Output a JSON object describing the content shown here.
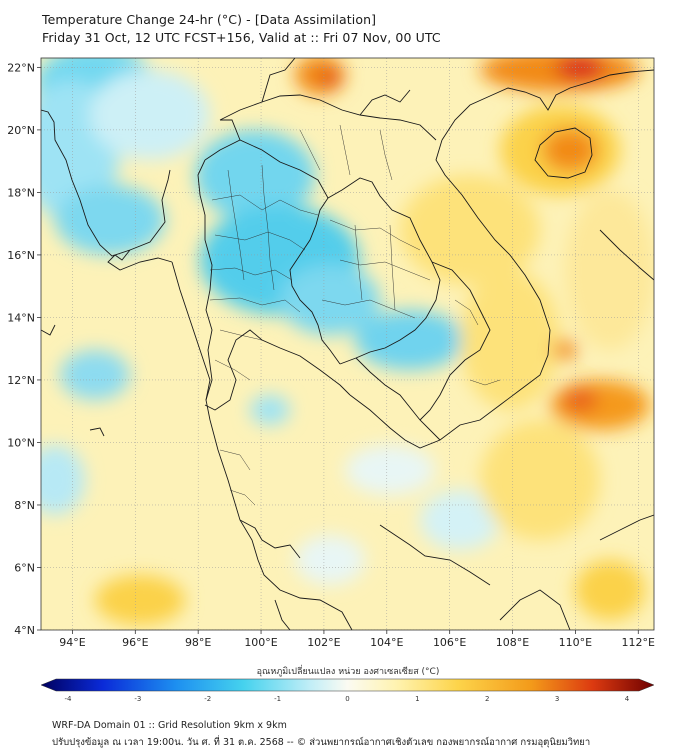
{
  "title": {
    "line1": "Temperature Change 24-hr (°C) - [Data Assimilation]",
    "line2": "Friday 31 Oct, 12 UTC FCST+156, Valid at :: Fri 07 Nov, 00 UTC"
  },
  "map": {
    "lat_ticks": [
      "22°N",
      "20°N",
      "18°N",
      "16°N",
      "14°N",
      "12°N",
      "10°N",
      "8°N",
      "6°N",
      "4°N"
    ],
    "lon_ticks": [
      "94°E",
      "96°E",
      "98°E",
      "100°E",
      "102°E",
      "104°E",
      "106°E",
      "108°E",
      "110°E",
      "112°E"
    ],
    "lat_range": [
      4,
      22.3
    ],
    "lon_range": [
      93,
      112.5
    ]
  },
  "colorbar": {
    "label": "อุณหภูมิเปลี่ยนแปลง หน่วย องศาเซลเซียส (°C)",
    "ticks": [
      "-4",
      "-3",
      "-2",
      "-1",
      "0",
      "1",
      "2",
      "3",
      "4"
    ],
    "min": -4,
    "max": 4
  },
  "colors": {
    "cold_strong": "#00007a",
    "cold": "#1f5fe0",
    "cool": "#4fd0ee",
    "neutral": "#fffff0",
    "warm": "#fde27a",
    "hot": "#f28a14",
    "hot_strong": "#c61414",
    "land_line": "#1a1a1a",
    "grid": "#999999"
  },
  "footer": {
    "line1": "WRF-DA Domain 01 :: Grid Resolution 9km x 9km",
    "line2": "ปรับปรุงข้อมูล ณ เวลา 19:00น. วัน ศ. ที่ 31 ต.ค. 2568 -- © ส่วนพยากรณ์อากาศเชิงตัวเลข กองพยากรณ์อากาศ กรมอุตุนิยมวิทยา"
  }
}
